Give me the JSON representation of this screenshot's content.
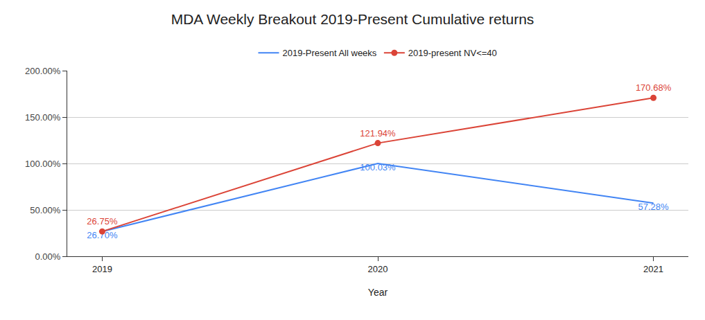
{
  "chart_data": {
    "type": "line",
    "title": "MDA Weekly Breakout 2019-Present Cumulative returns",
    "x_label": "Year",
    "categories": [
      "2019",
      "2020",
      "2021"
    ],
    "series": [
      {
        "name": "2019-Present All weeks",
        "color": "#4285f4",
        "marker": "none",
        "values": [
          26.7,
          100.03,
          57.28
        ],
        "value_labels": [
          "26.70%",
          "100.03%",
          "57.28%"
        ]
      },
      {
        "name": "2019-present NV<=40",
        "color": "#db4437",
        "marker": "circle",
        "values": [
          26.75,
          121.94,
          170.68
        ],
        "value_labels": [
          "26.75%",
          "121.94%",
          "170.68%"
        ]
      }
    ],
    "ylim": [
      0,
      200
    ],
    "yticks": [
      {
        "value": 0,
        "label": "0.00%"
      },
      {
        "value": 50,
        "label": "50.00%"
      },
      {
        "value": 100,
        "label": "100.00%"
      },
      {
        "value": 150,
        "label": "150.00%"
      },
      {
        "value": 200,
        "label": "200.00%"
      }
    ],
    "grid": true,
    "legend": "top",
    "data_labels": true
  }
}
